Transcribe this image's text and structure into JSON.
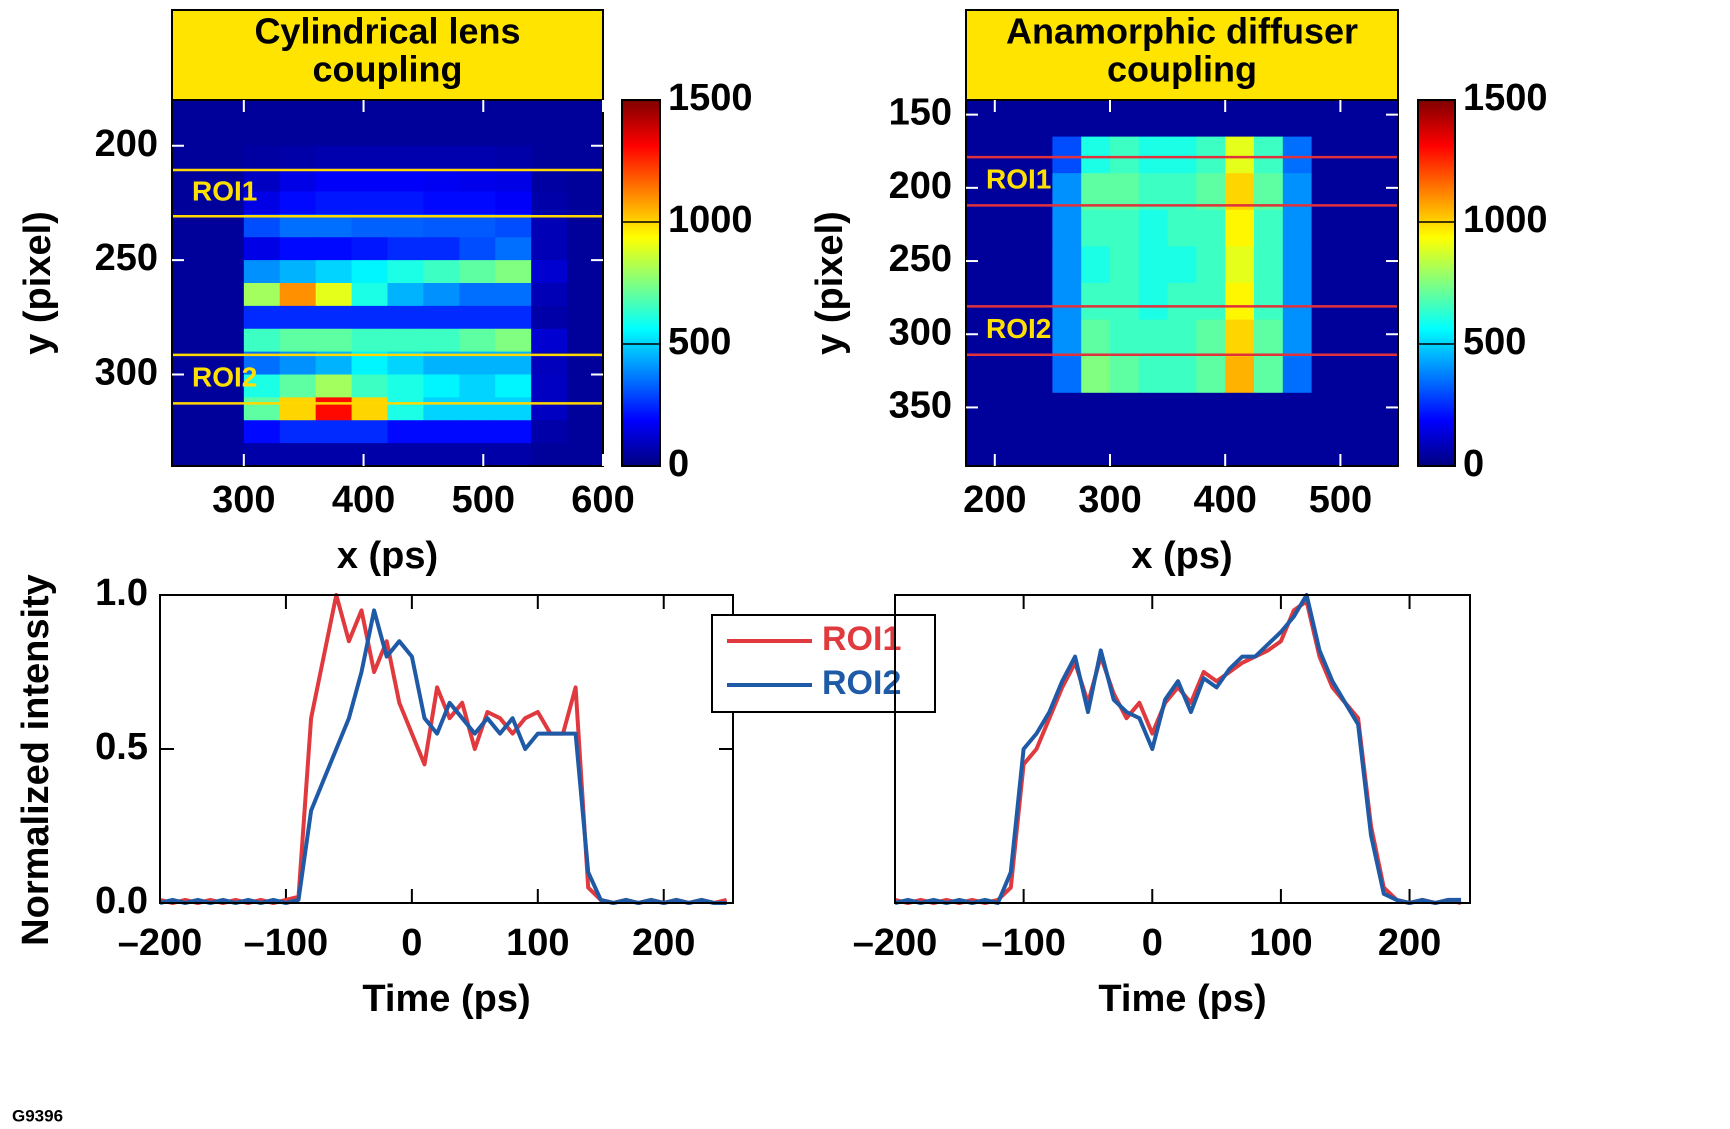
{
  "figure_id": "G9396",
  "chart_data": [
    {
      "type": "heatmap",
      "title": [
        "Cylindrical lens",
        "coupling"
      ],
      "x_label": "x (ps)",
      "y_label": "y (pixel)",
      "xlim": [
        240,
        600
      ],
      "ylim": [
        340,
        180
      ],
      "xticks": [
        300,
        400,
        500,
        600
      ],
      "yticks": [
        200,
        250,
        300
      ],
      "colormap": "jet",
      "clim": [
        0,
        1500
      ],
      "cticks": [
        0,
        500,
        1000,
        1500
      ],
      "x_edges": [
        240,
        270,
        300,
        330,
        360,
        390,
        420,
        450,
        480,
        510,
        540,
        570,
        600
      ],
      "y_edges": [
        180,
        190,
        200,
        210,
        220,
        230,
        240,
        250,
        260,
        270,
        280,
        290,
        300,
        310,
        320,
        330,
        340
      ],
      "z": [
        [
          40,
          40,
          40,
          40,
          40,
          40,
          40,
          40,
          40,
          40,
          40,
          40
        ],
        [
          40,
          40,
          40,
          40,
          40,
          40,
          40,
          40,
          40,
          40,
          40,
          40
        ],
        [
          40,
          40,
          50,
          60,
          70,
          70,
          70,
          70,
          70,
          60,
          40,
          40
        ],
        [
          40,
          40,
          100,
          150,
          180,
          180,
          180,
          170,
          160,
          150,
          50,
          40
        ],
        [
          40,
          40,
          150,
          200,
          220,
          220,
          220,
          200,
          200,
          180,
          60,
          40
        ],
        [
          40,
          40,
          300,
          350,
          350,
          330,
          330,
          320,
          320,
          300,
          80,
          40
        ],
        [
          40,
          40,
          150,
          200,
          200,
          220,
          250,
          250,
          300,
          350,
          80,
          40
        ],
        [
          40,
          40,
          400,
          450,
          500,
          550,
          600,
          650,
          700,
          750,
          120,
          40
        ],
        [
          40,
          40,
          800,
          1100,
          900,
          600,
          450,
          400,
          350,
          350,
          80,
          40
        ],
        [
          40,
          40,
          250,
          250,
          250,
          250,
          250,
          250,
          250,
          250,
          60,
          40
        ],
        [
          40,
          40,
          650,
          700,
          700,
          650,
          650,
          650,
          700,
          750,
          120,
          40
        ],
        [
          40,
          40,
          350,
          400,
          450,
          550,
          500,
          450,
          450,
          450,
          90,
          40
        ],
        [
          40,
          40,
          600,
          700,
          800,
          650,
          600,
          550,
          500,
          550,
          100,
          40
        ],
        [
          40,
          40,
          700,
          1000,
          1300,
          1000,
          600,
          500,
          500,
          500,
          100,
          40
        ],
        [
          40,
          40,
          200,
          250,
          250,
          250,
          200,
          200,
          200,
          200,
          60,
          40
        ],
        [
          40,
          40,
          60,
          60,
          60,
          60,
          60,
          60,
          60,
          60,
          40,
          40
        ]
      ],
      "rois": [
        {
          "name": "ROI1",
          "y": [
            210.6,
            230.8
          ]
        },
        {
          "name": "ROI2",
          "y": [
            291.4,
            312.6
          ]
        }
      ],
      "roi_color": "#ffd800"
    },
    {
      "type": "heatmap",
      "title": [
        "Anamorphic diffuser",
        "coupling"
      ],
      "x_label": "x (ps)",
      "y_label": "y (pixel)",
      "xlim": [
        175,
        550
      ],
      "ylim": [
        390,
        140
      ],
      "xticks": [
        200,
        300,
        400,
        500
      ],
      "yticks": [
        150,
        200,
        250,
        300,
        350
      ],
      "colormap": "jet",
      "clim": [
        0,
        1500
      ],
      "cticks": [
        0,
        500,
        1000,
        1500
      ],
      "x_edges": [
        175,
        200,
        225,
        250,
        275,
        300,
        325,
        350,
        375,
        400,
        425,
        450,
        475,
        500,
        525,
        550
      ],
      "y_edges": [
        140,
        165,
        190,
        215,
        240,
        265,
        290,
        315,
        340,
        365,
        390
      ],
      "z": [
        [
          40,
          40,
          40,
          40,
          40,
          40,
          40,
          40,
          40,
          40,
          40,
          40,
          40,
          40,
          40
        ],
        [
          40,
          40,
          40,
          300,
          600,
          650,
          600,
          600,
          650,
          900,
          650,
          350,
          40,
          40,
          40
        ],
        [
          40,
          40,
          40,
          400,
          700,
          700,
          650,
          650,
          700,
          1000,
          700,
          400,
          40,
          40,
          40
        ],
        [
          40,
          40,
          40,
          400,
          650,
          650,
          600,
          650,
          650,
          950,
          650,
          400,
          40,
          40,
          40
        ],
        [
          40,
          40,
          40,
          400,
          600,
          650,
          600,
          600,
          650,
          900,
          650,
          400,
          40,
          40,
          40
        ],
        [
          40,
          40,
          40,
          400,
          650,
          650,
          600,
          650,
          650,
          950,
          650,
          400,
          40,
          40,
          40
        ],
        [
          40,
          40,
          40,
          400,
          700,
          650,
          650,
          650,
          700,
          1000,
          700,
          400,
          40,
          40,
          40
        ],
        [
          40,
          40,
          40,
          350,
          750,
          700,
          650,
          650,
          700,
          1050,
          700,
          350,
          40,
          40,
          40
        ],
        [
          40,
          40,
          40,
          40,
          40,
          40,
          40,
          40,
          40,
          40,
          40,
          40,
          40,
          40,
          40
        ],
        [
          40,
          40,
          40,
          40,
          40,
          40,
          40,
          40,
          40,
          40,
          40,
          40,
          40,
          40,
          40
        ]
      ],
      "rois": [
        {
          "name": "ROI1",
          "y": [
            179,
            212
          ]
        },
        {
          "name": "ROI2",
          "y": [
            281,
            314
          ]
        }
      ],
      "roi_color": "#e0323c"
    },
    {
      "type": "line",
      "x_label": "Time (ps)",
      "y_label": "Normalized intensity",
      "xlim": [
        -200,
        255
      ],
      "ylim": [
        0,
        1
      ],
      "xticks": [
        {
          "value": -200,
          "label": "–200"
        },
        {
          "value": -100,
          "label": "–100"
        },
        0,
        100,
        200
      ],
      "yticks": [
        {
          "value": 0,
          "label": "0.0"
        },
        {
          "value": 0.5,
          "label": "0.5"
        },
        {
          "value": 1,
          "label": "1.0"
        }
      ],
      "legend": "upper-right",
      "x": [
        -200,
        -190,
        -180,
        -170,
        -160,
        -150,
        -140,
        -130,
        -120,
        -110,
        -100,
        -90,
        -80,
        -70,
        -60,
        -50,
        -40,
        -30,
        -20,
        -10,
        0,
        10,
        20,
        30,
        40,
        50,
        60,
        70,
        80,
        90,
        100,
        110,
        120,
        130,
        140,
        150,
        160,
        170,
        180,
        190,
        200,
        210,
        220,
        230,
        240,
        250
      ],
      "series": [
        {
          "name": "ROI1",
          "color": "#e0393e",
          "values": [
            0.01,
            0,
            0.01,
            0,
            0.01,
            0,
            0.01,
            0,
            0.01,
            0,
            0.01,
            0.02,
            0.6,
            0.8,
            1.0,
            0.85,
            0.95,
            0.75,
            0.85,
            0.65,
            0.55,
            0.45,
            0.7,
            0.6,
            0.65,
            0.5,
            0.62,
            0.6,
            0.55,
            0.6,
            0.62,
            0.55,
            0.55,
            0.7,
            0.05,
            0.01,
            0,
            0.01,
            0,
            0.01,
            0,
            0.01,
            0,
            0.01,
            0,
            0.01
          ]
        },
        {
          "name": "ROI2",
          "color": "#1f5aa6",
          "values": [
            0,
            0.01,
            0,
            0.01,
            0,
            0.01,
            0,
            0.01,
            0,
            0.01,
            0,
            0.01,
            0.3,
            0.4,
            0.5,
            0.6,
            0.75,
            0.95,
            0.8,
            0.85,
            0.8,
            0.6,
            0.55,
            0.65,
            0.6,
            0.55,
            0.6,
            0.55,
            0.6,
            0.5,
            0.55,
            0.55,
            0.55,
            0.55,
            0.1,
            0.01,
            0,
            0.01,
            0,
            0.01,
            0,
            0.01,
            0,
            0.01,
            0,
            0
          ]
        }
      ]
    },
    {
      "type": "line",
      "x_label": "Time (ps)",
      "xlim": [
        -200,
        247
      ],
      "ylim": [
        0,
        1
      ],
      "xticks": [
        {
          "value": -200,
          "label": "–200"
        },
        {
          "value": -100,
          "label": "–100"
        },
        0,
        100,
        200
      ],
      "x": [
        -200,
        -190,
        -180,
        -170,
        -160,
        -150,
        -140,
        -130,
        -120,
        -110,
        -100,
        -90,
        -80,
        -70,
        -60,
        -50,
        -40,
        -30,
        -20,
        -10,
        0,
        10,
        20,
        30,
        40,
        50,
        60,
        70,
        80,
        90,
        100,
        110,
        120,
        130,
        140,
        150,
        160,
        170,
        180,
        190,
        200,
        210,
        220,
        230,
        240
      ],
      "series": [
        {
          "name": "ROI1",
          "color": "#e0393e",
          "values": [
            0.01,
            0,
            0.01,
            0,
            0.01,
            0,
            0.01,
            0,
            0.01,
            0.05,
            0.45,
            0.5,
            0.6,
            0.7,
            0.78,
            0.65,
            0.8,
            0.68,
            0.6,
            0.65,
            0.55,
            0.65,
            0.7,
            0.65,
            0.75,
            0.72,
            0.75,
            0.78,
            0.8,
            0.82,
            0.85,
            0.95,
            0.98,
            0.8,
            0.7,
            0.65,
            0.6,
            0.25,
            0.05,
            0.01,
            0,
            0.01,
            0,
            0.01,
            0
          ]
        },
        {
          "name": "ROI2",
          "color": "#1f5aa6",
          "values": [
            0,
            0.01,
            0,
            0.01,
            0,
            0.01,
            0,
            0.01,
            0,
            0.1,
            0.5,
            0.55,
            0.62,
            0.72,
            0.8,
            0.62,
            0.82,
            0.66,
            0.62,
            0.6,
            0.5,
            0.66,
            0.72,
            0.62,
            0.73,
            0.7,
            0.76,
            0.8,
            0.8,
            0.84,
            0.88,
            0.93,
            1.0,
            0.82,
            0.72,
            0.65,
            0.58,
            0.22,
            0.03,
            0.01,
            0,
            0.01,
            0,
            0.01,
            0.01
          ]
        }
      ]
    }
  ]
}
